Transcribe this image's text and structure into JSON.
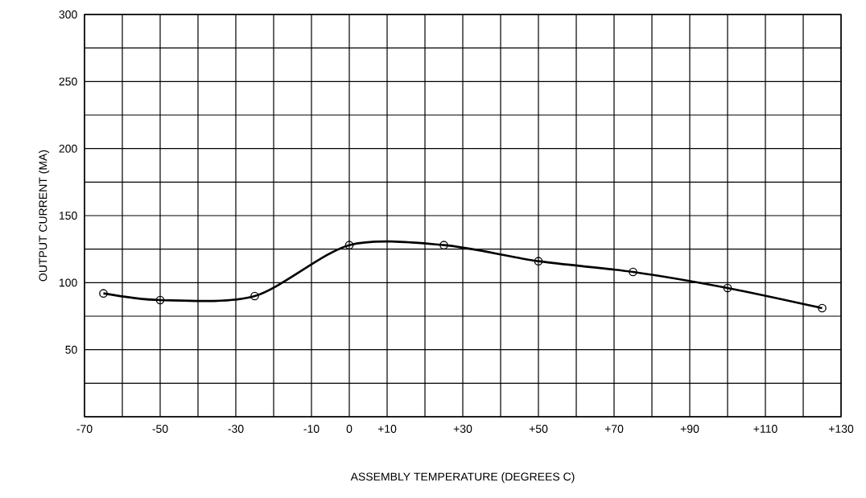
{
  "chart_data": {
    "type": "line",
    "xlabel": "ASSEMBLY TEMPERATURE (DEGREES C)",
    "ylabel": "OUTPUT CURRENT (MA)",
    "x": [
      -65,
      -50,
      -25,
      0,
      25,
      50,
      75,
      100,
      125
    ],
    "values": [
      92,
      87,
      90,
      128,
      128,
      116,
      108,
      96,
      81
    ],
    "color": "#000000",
    "marker": "circle",
    "line_style": "solid",
    "grid": true,
    "xlim": [
      -70,
      130
    ],
    "ylim": [
      0,
      300
    ],
    "xticks": [
      {
        "value": -70,
        "label": "-70"
      },
      {
        "value": -60,
        "label": null
      },
      {
        "value": -50,
        "label": "-50"
      },
      {
        "value": -40,
        "label": null
      },
      {
        "value": -30,
        "label": "-30"
      },
      {
        "value": -20,
        "label": null
      },
      {
        "value": -10,
        "label": "-10"
      },
      0,
      {
        "value": 10,
        "label": "+10"
      },
      {
        "value": 20,
        "label": null
      },
      {
        "value": 30,
        "label": "+30"
      },
      {
        "value": 40,
        "label": null
      },
      {
        "value": 50,
        "label": "+50"
      },
      {
        "value": 60,
        "label": null
      },
      {
        "value": 70,
        "label": "+70"
      },
      {
        "value": 80,
        "label": null
      },
      {
        "value": 90,
        "label": "+90"
      },
      {
        "value": 100,
        "label": null
      },
      {
        "value": 110,
        "label": "+110"
      },
      {
        "value": 120,
        "label": null
      },
      {
        "value": 130,
        "label": "+130"
      }
    ],
    "yticks": [
      {
        "value": 0,
        "label": null
      },
      {
        "value": 25,
        "label": null
      },
      50,
      {
        "value": 75,
        "label": null
      },
      100,
      {
        "value": 125,
        "label": null
      },
      150,
      {
        "value": 175,
        "label": null
      },
      200,
      {
        "value": 225,
        "label": null
      },
      250,
      {
        "value": 275,
        "label": null
      },
      300
    ]
  }
}
